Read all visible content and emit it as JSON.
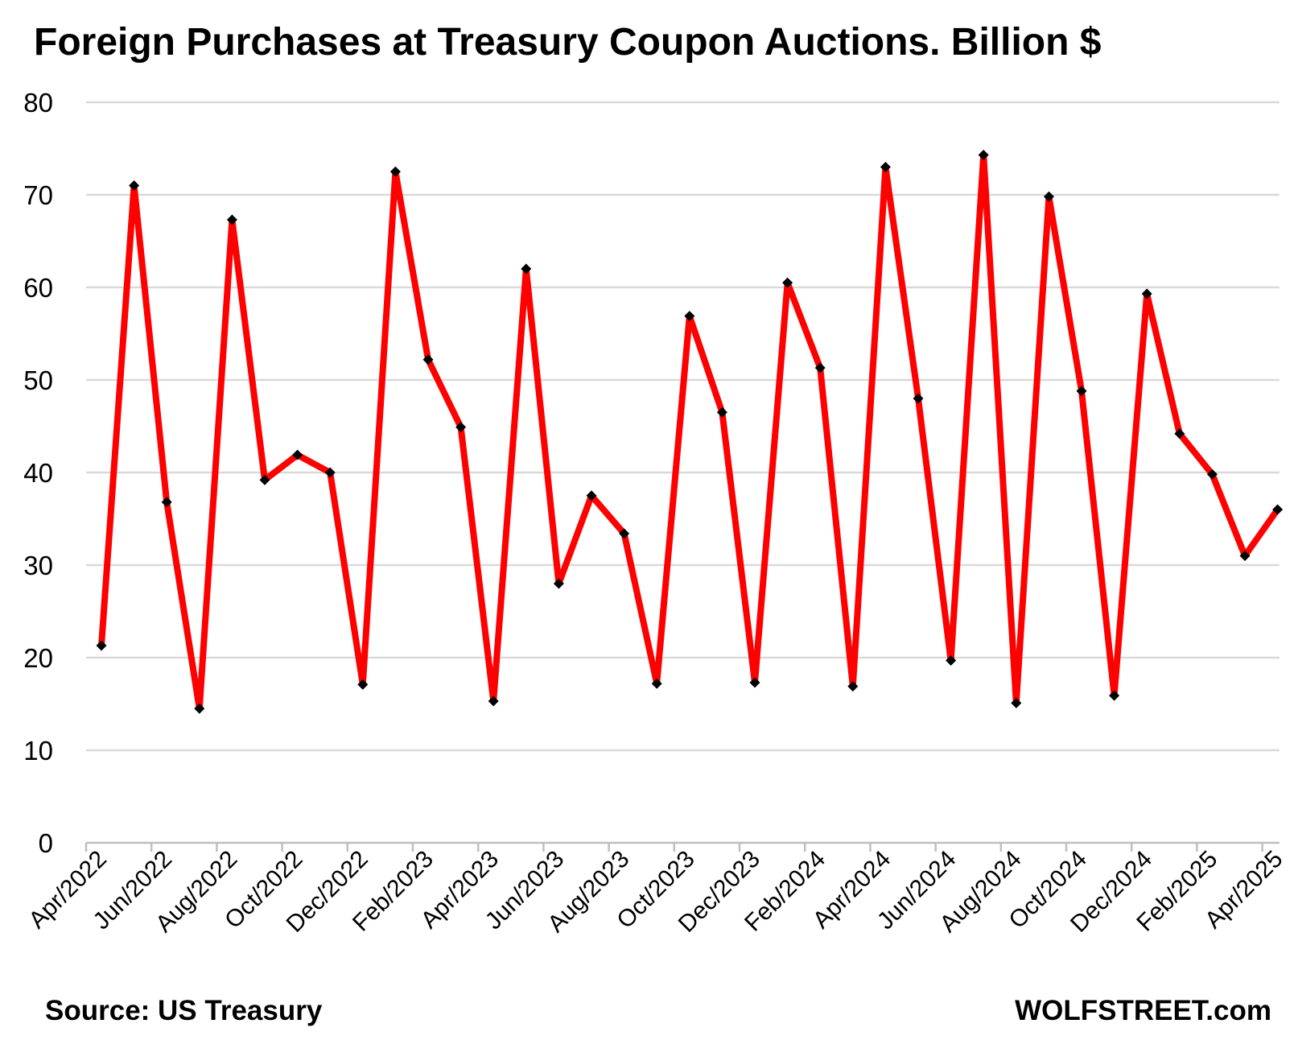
{
  "chart_data": {
    "type": "line",
    "title": "Foreign Purchases at Treasury Coupon Auctions. Billion $",
    "source": "Source: US Treasury",
    "watermark": "WOLFSTREET.com",
    "ylim": [
      0,
      80
    ],
    "yticks": [
      "0",
      "10",
      "20",
      "30",
      "40",
      "50",
      "60",
      "70",
      "80"
    ],
    "grid": true,
    "legend": "none",
    "line_color": "#ff0000",
    "marker_color": "#000000",
    "xtick_labels": [
      "Apr/2022",
      "Jun/2022",
      "Aug/2022",
      "Oct/2022",
      "Dec/2022",
      "Feb/2023",
      "Apr/2023",
      "Jun/2023",
      "Aug/2023",
      "Oct/2023",
      "Dec/2023",
      "Feb/2024",
      "Apr/2024",
      "Jun/2024",
      "Aug/2024",
      "Oct/2024",
      "Dec/2024",
      "Feb/2025",
      "Apr/2025"
    ],
    "series": [
      {
        "values": [
          21.3,
          71.0,
          36.8,
          14.5,
          67.3,
          39.2,
          41.9,
          40.0,
          17.1,
          72.5,
          52.2,
          44.9,
          15.3,
          62.0,
          28.0,
          37.5,
          33.4,
          17.2,
          56.9,
          46.5,
          17.3,
          60.5,
          51.3,
          16.9,
          73.0,
          48.0,
          19.7,
          74.3,
          15.1,
          69.8,
          48.8,
          15.9,
          59.3,
          44.2,
          39.8,
          31.0,
          36.0
        ]
      }
    ]
  }
}
